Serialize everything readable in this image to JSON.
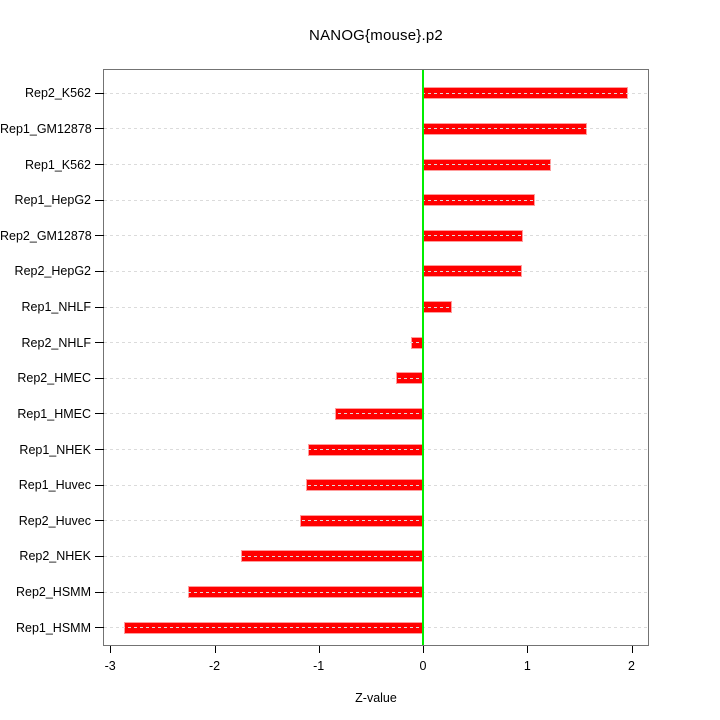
{
  "chart_data": {
    "type": "bar",
    "orientation": "horizontal",
    "title": "NANOG{mouse}.p2",
    "xlabel": "Z-value",
    "ylabel": "",
    "legend": "none",
    "grid": "horizontal-dashed",
    "categories": [
      "Rep2_K562",
      "Rep1_GM12878",
      "Rep1_K562",
      "Rep1_HepG2",
      "Rep2_GM12878",
      "Rep2_HepG2",
      "Rep1_NHLF",
      "Rep2_NHLF",
      "Rep2_HMEC",
      "Rep1_HMEC",
      "Rep1_NHEK",
      "Rep1_Huvec",
      "Rep2_Huvec",
      "Rep2_NHEK",
      "Rep2_HSMM",
      "Rep1_HSMM"
    ],
    "values": [
      1.97,
      1.57,
      1.23,
      1.07,
      0.96,
      0.95,
      0.28,
      -0.12,
      -0.26,
      -0.84,
      -1.1,
      -1.12,
      -1.18,
      -1.75,
      -2.25,
      -2.87
    ],
    "x_ticks": [
      "-3",
      "-2",
      "-1",
      "0",
      "1",
      "2"
    ],
    "x_tick_values": [
      -3,
      -2,
      -1,
      0,
      1,
      2
    ],
    "xlim": [
      -3.06,
      2.16
    ],
    "zero_line_x": 0,
    "colors": {
      "bar_fill": "#FF0000",
      "bar_border": "#FF9C9C",
      "zero_line": "#00EE00",
      "gridline": "#DBDBDB",
      "plot_border": "#737373",
      "axis_text": "#000000",
      "background": "#FFFFFF"
    }
  }
}
